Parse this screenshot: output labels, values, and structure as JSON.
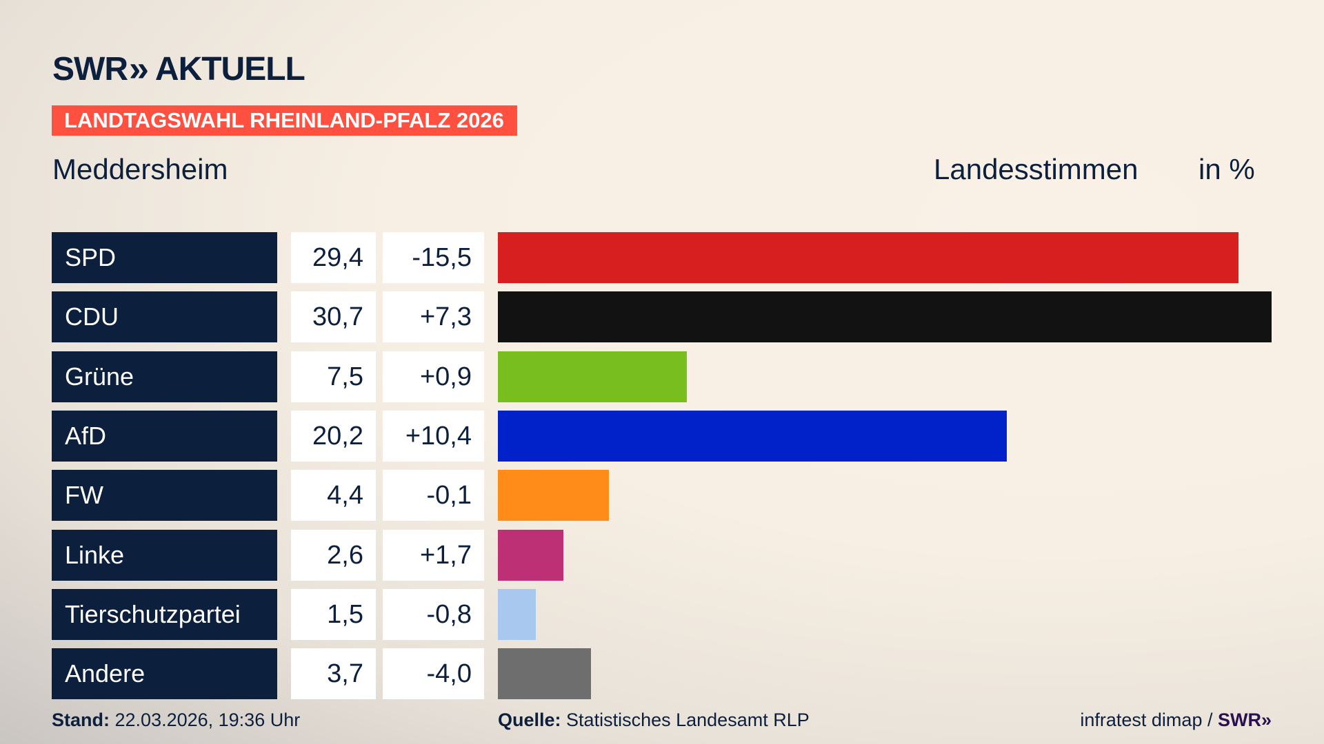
{
  "header": {
    "logo": "SWR» AKTUELL",
    "logo_swr": "SWR",
    "logo_aktuell": "AKTUELL",
    "banner": "LANDTAGSWAHL RHEINLAND-PFALZ 2026",
    "place": "Meddersheim",
    "metric": "Landesstimmen",
    "unit": "in %"
  },
  "colors": {
    "navy": "#0c1f3d",
    "banner": "#ff5040"
  },
  "chart_data": {
    "type": "bar",
    "orientation": "horizontal",
    "title": "Landesstimmen",
    "unit": "in %",
    "categories": [
      "SPD",
      "CDU",
      "Grüne",
      "AfD",
      "FW",
      "Linke",
      "Tierschutzpartei",
      "Andere"
    ],
    "values": [
      29.4,
      30.7,
      7.5,
      20.2,
      4.4,
      2.6,
      1.5,
      3.7
    ],
    "value_labels": [
      "29,4",
      "30,7",
      "7,5",
      "20,2",
      "4,4",
      "2,6",
      "1,5",
      "3,7"
    ],
    "changes": [
      -15.5,
      7.3,
      0.9,
      10.4,
      -0.1,
      1.7,
      -0.8,
      -4.0
    ],
    "change_labels": [
      "-15,5",
      "+7,3",
      "+0,9",
      "+10,4",
      "-0,1",
      "+1,7",
      "-0,8",
      "-4,0"
    ],
    "colors": [
      "#d71f1f",
      "#121212",
      "#78be1e",
      "#0022c8",
      "#ff8c18",
      "#be3075",
      "#a9c8f0",
      "#6e6e6e"
    ]
  },
  "footer": {
    "stand_label": "Stand:",
    "stand_value": "22.03.2026, 19:36 Uhr",
    "source_label": "Quelle:",
    "source_value": "Statistisches Landesamt RLP",
    "credit": "infratest dimap /",
    "credit_logo": "SWR»"
  }
}
